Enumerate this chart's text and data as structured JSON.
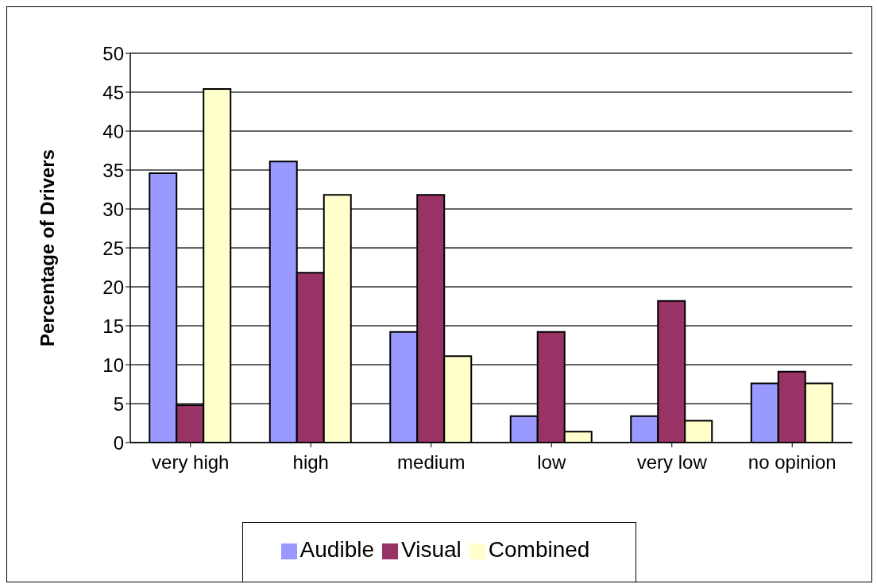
{
  "chart_data": {
    "type": "bar",
    "ylabel": "Percentage of Drivers",
    "categories": [
      "very high",
      "high",
      "medium",
      "low",
      "very low",
      "no opinion"
    ],
    "series": [
      {
        "name": "Audible",
        "color": "#9999ff",
        "values": [
          34.6,
          36.1,
          14.2,
          3.4,
          3.4,
          7.6
        ]
      },
      {
        "name": "Visual",
        "color": "#993366",
        "values": [
          4.8,
          21.8,
          31.8,
          14.2,
          18.2,
          9.1
        ]
      },
      {
        "name": "Combined",
        "color": "#ffffcc",
        "values": [
          45.4,
          31.8,
          11.1,
          1.4,
          2.8,
          7.6
        ]
      }
    ],
    "ylim": [
      0,
      50
    ],
    "yticks": [
      0,
      5,
      10,
      15,
      20,
      25,
      30,
      35,
      40,
      45,
      50
    ],
    "grid": "y",
    "legend": "bottom"
  }
}
